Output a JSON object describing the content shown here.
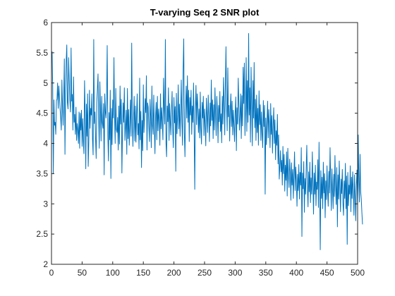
{
  "chart_data": {
    "type": "line",
    "title": "T-varying Seq 2 SNR plot",
    "xlabel": "",
    "ylabel": "",
    "xlim": [
      0,
      500
    ],
    "ylim": [
      2,
      6
    ],
    "xticks": [
      "0",
      "50",
      "100",
      "150",
      "200",
      "250",
      "300",
      "350",
      "400",
      "450",
      "500"
    ],
    "yticks": [
      "2",
      "2.5",
      "3",
      "3.5",
      "4",
      "4.5",
      "5",
      "5.5",
      "6"
    ],
    "grid": false,
    "legend": "none",
    "line_color": "#0072BD",
    "series": [
      {
        "x_start": 1,
        "x_step": 1,
        "y": [
          5.52,
          4.92,
          3.5,
          4.72,
          4.3,
          4.35,
          4.15,
          4.71,
          4.73,
          5.0,
          4.58,
          4.95,
          4.78,
          4.58,
          4.42,
          4.22,
          5.05,
          4.63,
          4.3,
          4.75,
          5.4,
          3.82,
          4.8,
          5.35,
          5.63,
          4.68,
          4.57,
          5.42,
          5.05,
          4.72,
          4.52,
          5.58,
          4.7,
          4.81,
          4.22,
          5.1,
          4.35,
          4.48,
          4.15,
          4.6,
          4.05,
          4.33,
          4.22,
          4.0,
          4.52,
          3.92,
          4.5,
          4.22,
          4.55,
          3.95,
          4.41,
          4.04,
          3.83,
          5.04,
          4.51,
          3.58,
          4.65,
          4.12,
          4.82,
          3.62,
          4.05,
          4.88,
          4.25,
          4.58,
          4.47,
          4.82,
          4.07,
          3.81,
          5.72,
          4.33,
          4.52,
          4.08,
          3.75,
          4.68,
          4.9,
          5.15,
          4.45,
          3.92,
          5.02,
          4.55,
          4.04,
          4.78,
          4.35,
          4.25,
          4.66,
          3.48,
          4.82,
          4.53,
          4.42,
          4.72,
          5.62,
          4.15,
          3.71,
          4.51,
          4.06,
          4.88,
          3.42,
          4.58,
          3.98,
          4.72,
          4.42,
          5.42,
          4.48,
          4.0,
          4.91,
          4.23,
          4.18,
          4.43,
          3.89,
          4.62,
          3.99,
          4.95,
          4.32,
          4.73,
          3.51,
          4.2,
          4.67,
          4.35,
          4.92,
          4.05,
          4.27,
          4.55,
          3.82,
          4.91,
          4.08,
          4.56,
          3.97,
          4.3,
          4.72,
          4.12,
          5.66,
          4.35,
          3.95,
          4.41,
          4.78,
          4.04,
          4.62,
          4.02,
          4.48,
          4.82,
          4.14,
          4.33,
          3.91,
          5.08,
          4.06,
          4.53,
          3.6,
          4.38,
          3.88,
          4.97,
          4.18,
          4.42,
          4.74,
          4.51,
          5.12,
          3.89,
          4.67,
          4.6,
          4.28,
          4.03,
          4.73,
          4.44,
          3.93,
          4.95,
          4.31,
          4.15,
          4.8,
          4.28,
          3.83,
          4.46,
          4.68,
          4.06,
          4.78,
          4.21,
          4.57,
          4.39,
          3.97,
          4.82,
          4.24,
          4.59,
          4.34,
          4.06,
          5.08,
          4.58,
          4.32,
          5.72,
          4.01,
          3.78,
          4.62,
          4.36,
          4.92,
          4.05,
          4.66,
          4.39,
          4.14,
          4.55,
          4.86,
          4.23,
          3.93,
          4.76,
          4.34,
          4.61,
          3.54,
          4.83,
          4.16,
          4.47,
          4.97,
          4.24,
          4.65,
          4.12,
          4.55,
          5.05,
          4.33,
          3.97,
          5.22,
          5.73,
          4.18,
          3.78,
          4.55,
          4.95,
          4.42,
          5.12,
          4.35,
          4.88,
          4.03,
          4.76,
          4.47,
          4.88,
          4.15,
          4.62,
          4.35,
          5.0,
          4.22,
          3.24,
          4.55,
          4.96,
          4.31,
          4.82,
          4.63,
          4.18,
          4.57,
          4.09,
          4.85,
          4.25,
          3.99,
          4.68,
          4.42,
          4.78,
          4.13,
          4.57,
          4.32,
          3.96,
          4.75,
          4.46,
          4.18,
          4.8,
          4.41,
          4.03,
          4.67,
          4.29,
          5.05,
          4.38,
          4.72,
          4.08,
          4.64,
          4.22,
          4.92,
          4.5,
          4.13,
          4.78,
          4.55,
          4.01,
          4.63,
          4.36,
          4.86,
          4.2,
          4.49,
          4.01,
          4.78,
          4.32,
          5.09,
          4.7,
          4.14,
          4.97,
          5.6,
          4.62,
          4.21,
          5.25,
          4.44,
          4.63,
          4.04,
          4.57,
          4.82,
          4.28,
          4.7,
          4.14,
          4.55,
          4.31,
          4.03,
          4.5,
          4.77,
          3.88,
          4.59,
          4.32,
          5.08,
          4.64,
          4.22,
          4.46,
          4.82,
          4.08,
          4.79,
          4.29,
          5.26,
          4.66,
          5.33,
          4.13,
          4.56,
          5.42,
          4.2,
          5.04,
          4.35,
          5.82,
          4.47,
          4.92,
          4.02,
          5.26,
          4.61,
          3.96,
          5.04,
          4.42,
          5.34,
          4.26,
          4.73,
          4.05,
          4.8,
          4.18,
          4.58,
          3.97,
          4.87,
          4.31,
          4.64,
          4.05,
          4.52,
          4.18,
          3.93,
          4.71,
          4.28,
          4.63,
          3.16,
          4.42,
          3.98,
          4.36,
          4.7,
          4.09,
          4.56,
          4.28,
          3.93,
          4.66,
          4.15,
          4.46,
          3.84,
          4.29,
          4.59,
          4.0,
          4.39,
          3.73,
          4.21,
          3.97,
          4.48,
          3.66,
          4.14,
          3.41,
          3.62,
          3.88,
          3.53,
          3.72,
          3.31,
          3.95,
          3.5,
          3.82,
          3.21,
          3.64,
          3.39,
          3.86,
          3.13,
          3.92,
          3.45,
          3.27,
          3.74,
          3.52,
          3.06,
          3.68,
          3.31,
          3.57,
          3.09,
          3.49,
          3.86,
          3.22,
          3.61,
          3.38,
          2.96,
          3.49,
          3.22,
          3.65,
          3.08,
          3.52,
          3.31,
          3.93,
          2.46,
          3.51,
          3.25,
          3.7,
          2.86,
          3.42,
          3.16,
          3.58,
          3.97,
          3.27,
          2.95,
          3.53,
          3.2,
          3.69,
          3.02,
          3.43,
          3.16,
          3.86,
          3.34,
          2.83,
          3.51,
          3.16,
          3.64,
          2.97,
          3.36,
          3.24,
          3.73,
          2.94,
          4.02,
          3.27,
          2.24,
          3.55,
          3.09,
          3.44,
          2.92,
          3.69,
          3.18,
          3.5,
          2.77,
          3.38,
          3.07,
          3.63,
          3.21,
          2.96,
          3.54,
          3.18,
          3.93,
          3.4,
          2.89,
          3.58,
          3.24,
          2.92,
          3.49,
          3.12,
          3.8,
          3.31,
          2.99,
          3.6,
          2.62,
          3.48,
          3.08,
          3.71,
          3.27,
          2.87,
          3.41,
          3.17,
          3.57,
          3.02,
          2.81,
          3.38,
          3.09,
          3.67,
          2.92,
          3.46,
          2.33,
          3.52,
          2.97,
          3.31,
          3.16,
          3.63,
          2.87,
          3.44,
          3.09,
          3.53,
          3.23,
          2.81,
          3.48,
          3.11,
          2.72,
          3.31,
          3.56,
          2.96,
          4.14,
          3.39,
          3.03,
          3.82,
          3.2,
          3.08,
          2.85,
          2.66
        ]
      }
    ]
  }
}
